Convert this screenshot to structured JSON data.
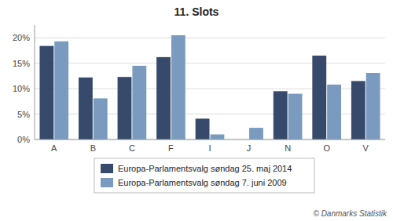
{
  "chart_data": {
    "type": "bar",
    "title": "11. Slots",
    "categories": [
      "A",
      "B",
      "C",
      "F",
      "I",
      "J",
      "N",
      "O",
      "V"
    ],
    "series": [
      {
        "name": "Europa-Parlamentsvalg søndag  25. maj 2014",
        "color": "#374a6b",
        "values": [
          0.184,
          0.122,
          0.123,
          0.162,
          0.041,
          0.0,
          0.095,
          0.165,
          0.115
        ]
      },
      {
        "name": "Europa-Parlamentsvalg søndag  7. juni 2009",
        "color": "#7a9bbf",
        "values": [
          0.193,
          0.081,
          0.145,
          0.205,
          0.01,
          0.023,
          0.09,
          0.108,
          0.131
        ]
      }
    ],
    "ylim": [
      0,
      0.225
    ],
    "yticks": [
      {
        "value": 0.0,
        "label": "0%"
      },
      {
        "value": 0.05,
        "label": "5%"
      },
      {
        "value": 0.1,
        "label": "10%"
      },
      {
        "value": 0.15,
        "label": "15%"
      },
      {
        "value": 0.2,
        "label": "20%"
      }
    ],
    "grid": true,
    "legend": "bottom",
    "annotations": [
      "© Danmarks Statistik"
    ]
  }
}
